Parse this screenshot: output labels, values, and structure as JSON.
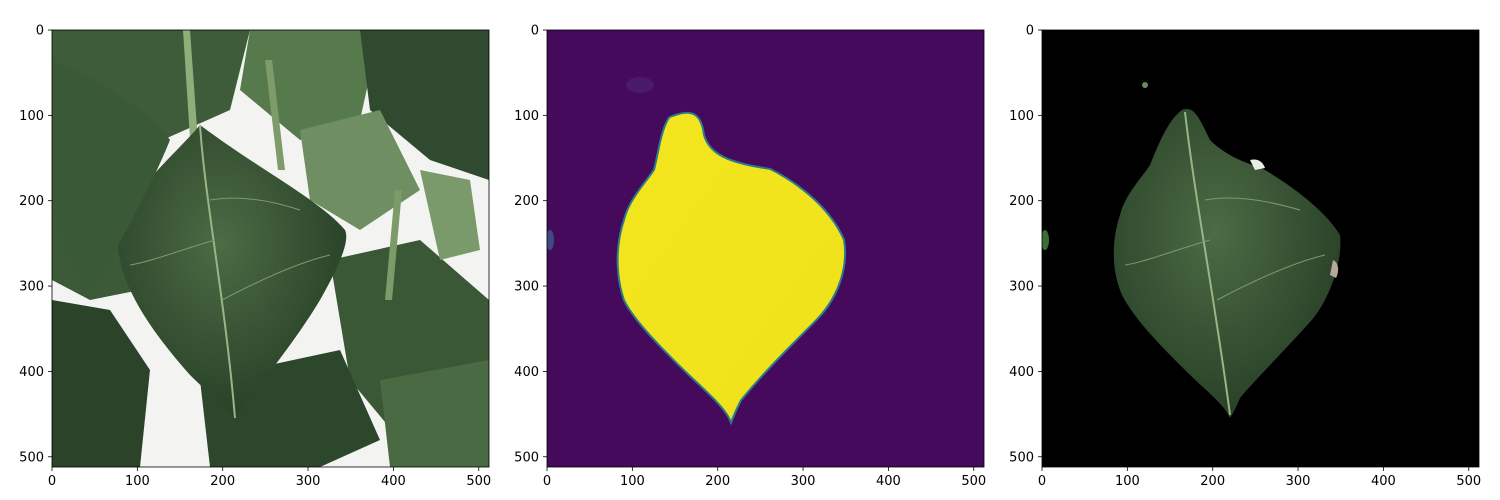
{
  "panels": [
    {
      "id": "original",
      "content": "photo of green pepper leaves",
      "x_ticks": [
        "0",
        "100",
        "200",
        "300",
        "400",
        "500"
      ],
      "y_ticks": [
        "0",
        "100",
        "200",
        "300",
        "400",
        "500"
      ]
    },
    {
      "id": "mask",
      "content": "predicted segmentation mask (viridis colormap)",
      "x_ticks": [
        "0",
        "100",
        "200",
        "300",
        "400",
        "500"
      ],
      "y_ticks": [
        "0",
        "100",
        "200",
        "300",
        "400",
        "500"
      ]
    },
    {
      "id": "masked",
      "content": "leaf image with background masked to black",
      "x_ticks": [
        "0",
        "100",
        "200",
        "300",
        "400",
        "500"
      ],
      "y_ticks": [
        "0",
        "100",
        "200",
        "300",
        "400",
        "500"
      ]
    }
  ],
  "image_extent": [
    0,
    512
  ],
  "colors": {
    "mask_background": "#440154",
    "mask_foreground": "#f2e41c",
    "mask_edge": "#21908d",
    "masked_background": "#000000",
    "leaf_dark": "#2d4a2b",
    "leaf_mid": "#3f5f3a",
    "leaf_light": "#7f9f72"
  }
}
